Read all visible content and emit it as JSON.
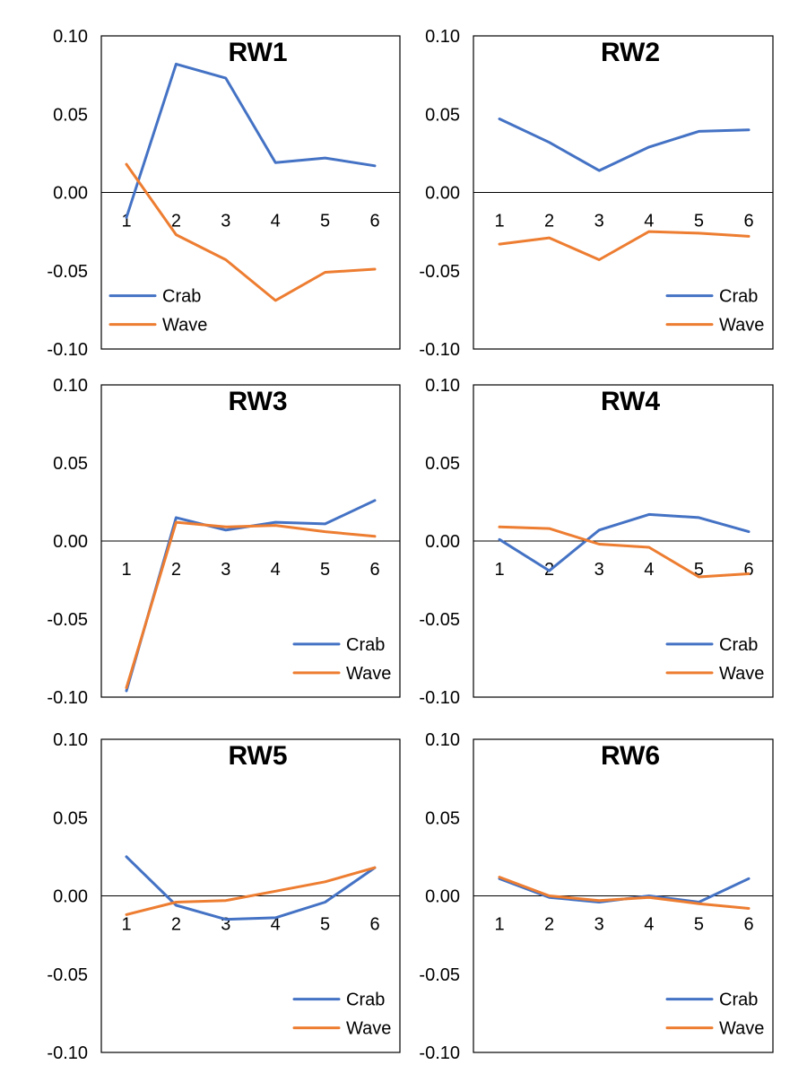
{
  "chart_data": [
    {
      "type": "line",
      "title": "RW1",
      "categories": [
        "1",
        "2",
        "3",
        "4",
        "5",
        "6"
      ],
      "ylim": [
        -0.1,
        0.1
      ],
      "yticks": [
        "0.10",
        "0.05",
        "0.00",
        "-0.05",
        "-0.10"
      ],
      "legend": "bottom-left",
      "series": [
        {
          "name": "Crab",
          "color": "#4472c4",
          "values": [
            -0.016,
            0.082,
            0.073,
            0.019,
            0.022,
            0.017
          ]
        },
        {
          "name": "Wave",
          "color": "#ed7d31",
          "values": [
            0.018,
            -0.027,
            -0.043,
            -0.069,
            -0.051,
            -0.049
          ]
        }
      ]
    },
    {
      "type": "line",
      "title": "RW2",
      "categories": [
        "1",
        "2",
        "3",
        "4",
        "5",
        "6"
      ],
      "ylim": [
        -0.1,
        0.1
      ],
      "yticks": [
        "0.10",
        "0.05",
        "0.00",
        "-0.05",
        "-0.10"
      ],
      "legend": "bottom-right",
      "series": [
        {
          "name": "Crab",
          "color": "#4472c4",
          "values": [
            0.047,
            0.032,
            0.014,
            0.029,
            0.039,
            0.04
          ]
        },
        {
          "name": "Wave",
          "color": "#ed7d31",
          "values": [
            -0.033,
            -0.029,
            -0.043,
            -0.025,
            -0.026,
            -0.028
          ]
        }
      ]
    },
    {
      "type": "line",
      "title": "RW3",
      "categories": [
        "1",
        "2",
        "3",
        "4",
        "5",
        "6"
      ],
      "ylim": [
        -0.1,
        0.1
      ],
      "yticks": [
        "0.10",
        "0.05",
        "0.00",
        "-0.05",
        "-0.10"
      ],
      "legend": "bottom-right",
      "series": [
        {
          "name": "Crab",
          "color": "#4472c4",
          "values": [
            -0.096,
            0.015,
            0.007,
            0.012,
            0.011,
            0.026
          ]
        },
        {
          "name": "Wave",
          "color": "#ed7d31",
          "values": [
            -0.094,
            0.012,
            0.009,
            0.01,
            0.006,
            0.003
          ]
        }
      ]
    },
    {
      "type": "line",
      "title": "RW4",
      "categories": [
        "1",
        "2",
        "3",
        "4",
        "5",
        "6"
      ],
      "ylim": [
        -0.1,
        0.1
      ],
      "yticks": [
        "0.10",
        "0.05",
        "0.00",
        "-0.05",
        "-0.10"
      ],
      "legend": "bottom-right",
      "series": [
        {
          "name": "Crab",
          "color": "#4472c4",
          "values": [
            0.001,
            -0.019,
            0.007,
            0.017,
            0.015,
            0.006
          ]
        },
        {
          "name": "Wave",
          "color": "#ed7d31",
          "values": [
            0.009,
            0.008,
            -0.002,
            -0.004,
            -0.023,
            -0.021
          ]
        }
      ]
    },
    {
      "type": "line",
      "title": "RW5",
      "categories": [
        "1",
        "2",
        "3",
        "4",
        "5",
        "6"
      ],
      "ylim": [
        -0.1,
        0.1
      ],
      "yticks": [
        "0.10",
        "0.05",
        "0.00",
        "-0.05",
        "-0.10"
      ],
      "legend": "bottom-right",
      "series": [
        {
          "name": "Crab",
          "color": "#4472c4",
          "values": [
            0.025,
            -0.006,
            -0.015,
            -0.014,
            -0.004,
            0.018
          ]
        },
        {
          "name": "Wave",
          "color": "#ed7d31",
          "values": [
            -0.012,
            -0.004,
            -0.003,
            0.003,
            0.009,
            0.018
          ]
        }
      ]
    },
    {
      "type": "line",
      "title": "RW6",
      "categories": [
        "1",
        "2",
        "3",
        "4",
        "5",
        "6"
      ],
      "ylim": [
        -0.1,
        0.1
      ],
      "yticks": [
        "0.10",
        "0.05",
        "0.00",
        "-0.05",
        "-0.10"
      ],
      "legend": "bottom-right",
      "series": [
        {
          "name": "Crab",
          "color": "#4472c4",
          "values": [
            0.011,
            -0.001,
            -0.004,
            0.0,
            -0.004,
            0.011
          ]
        },
        {
          "name": "Wave",
          "color": "#ed7d31",
          "values": [
            0.012,
            0.0,
            -0.003,
            -0.001,
            -0.005,
            -0.008
          ]
        }
      ]
    }
  ]
}
